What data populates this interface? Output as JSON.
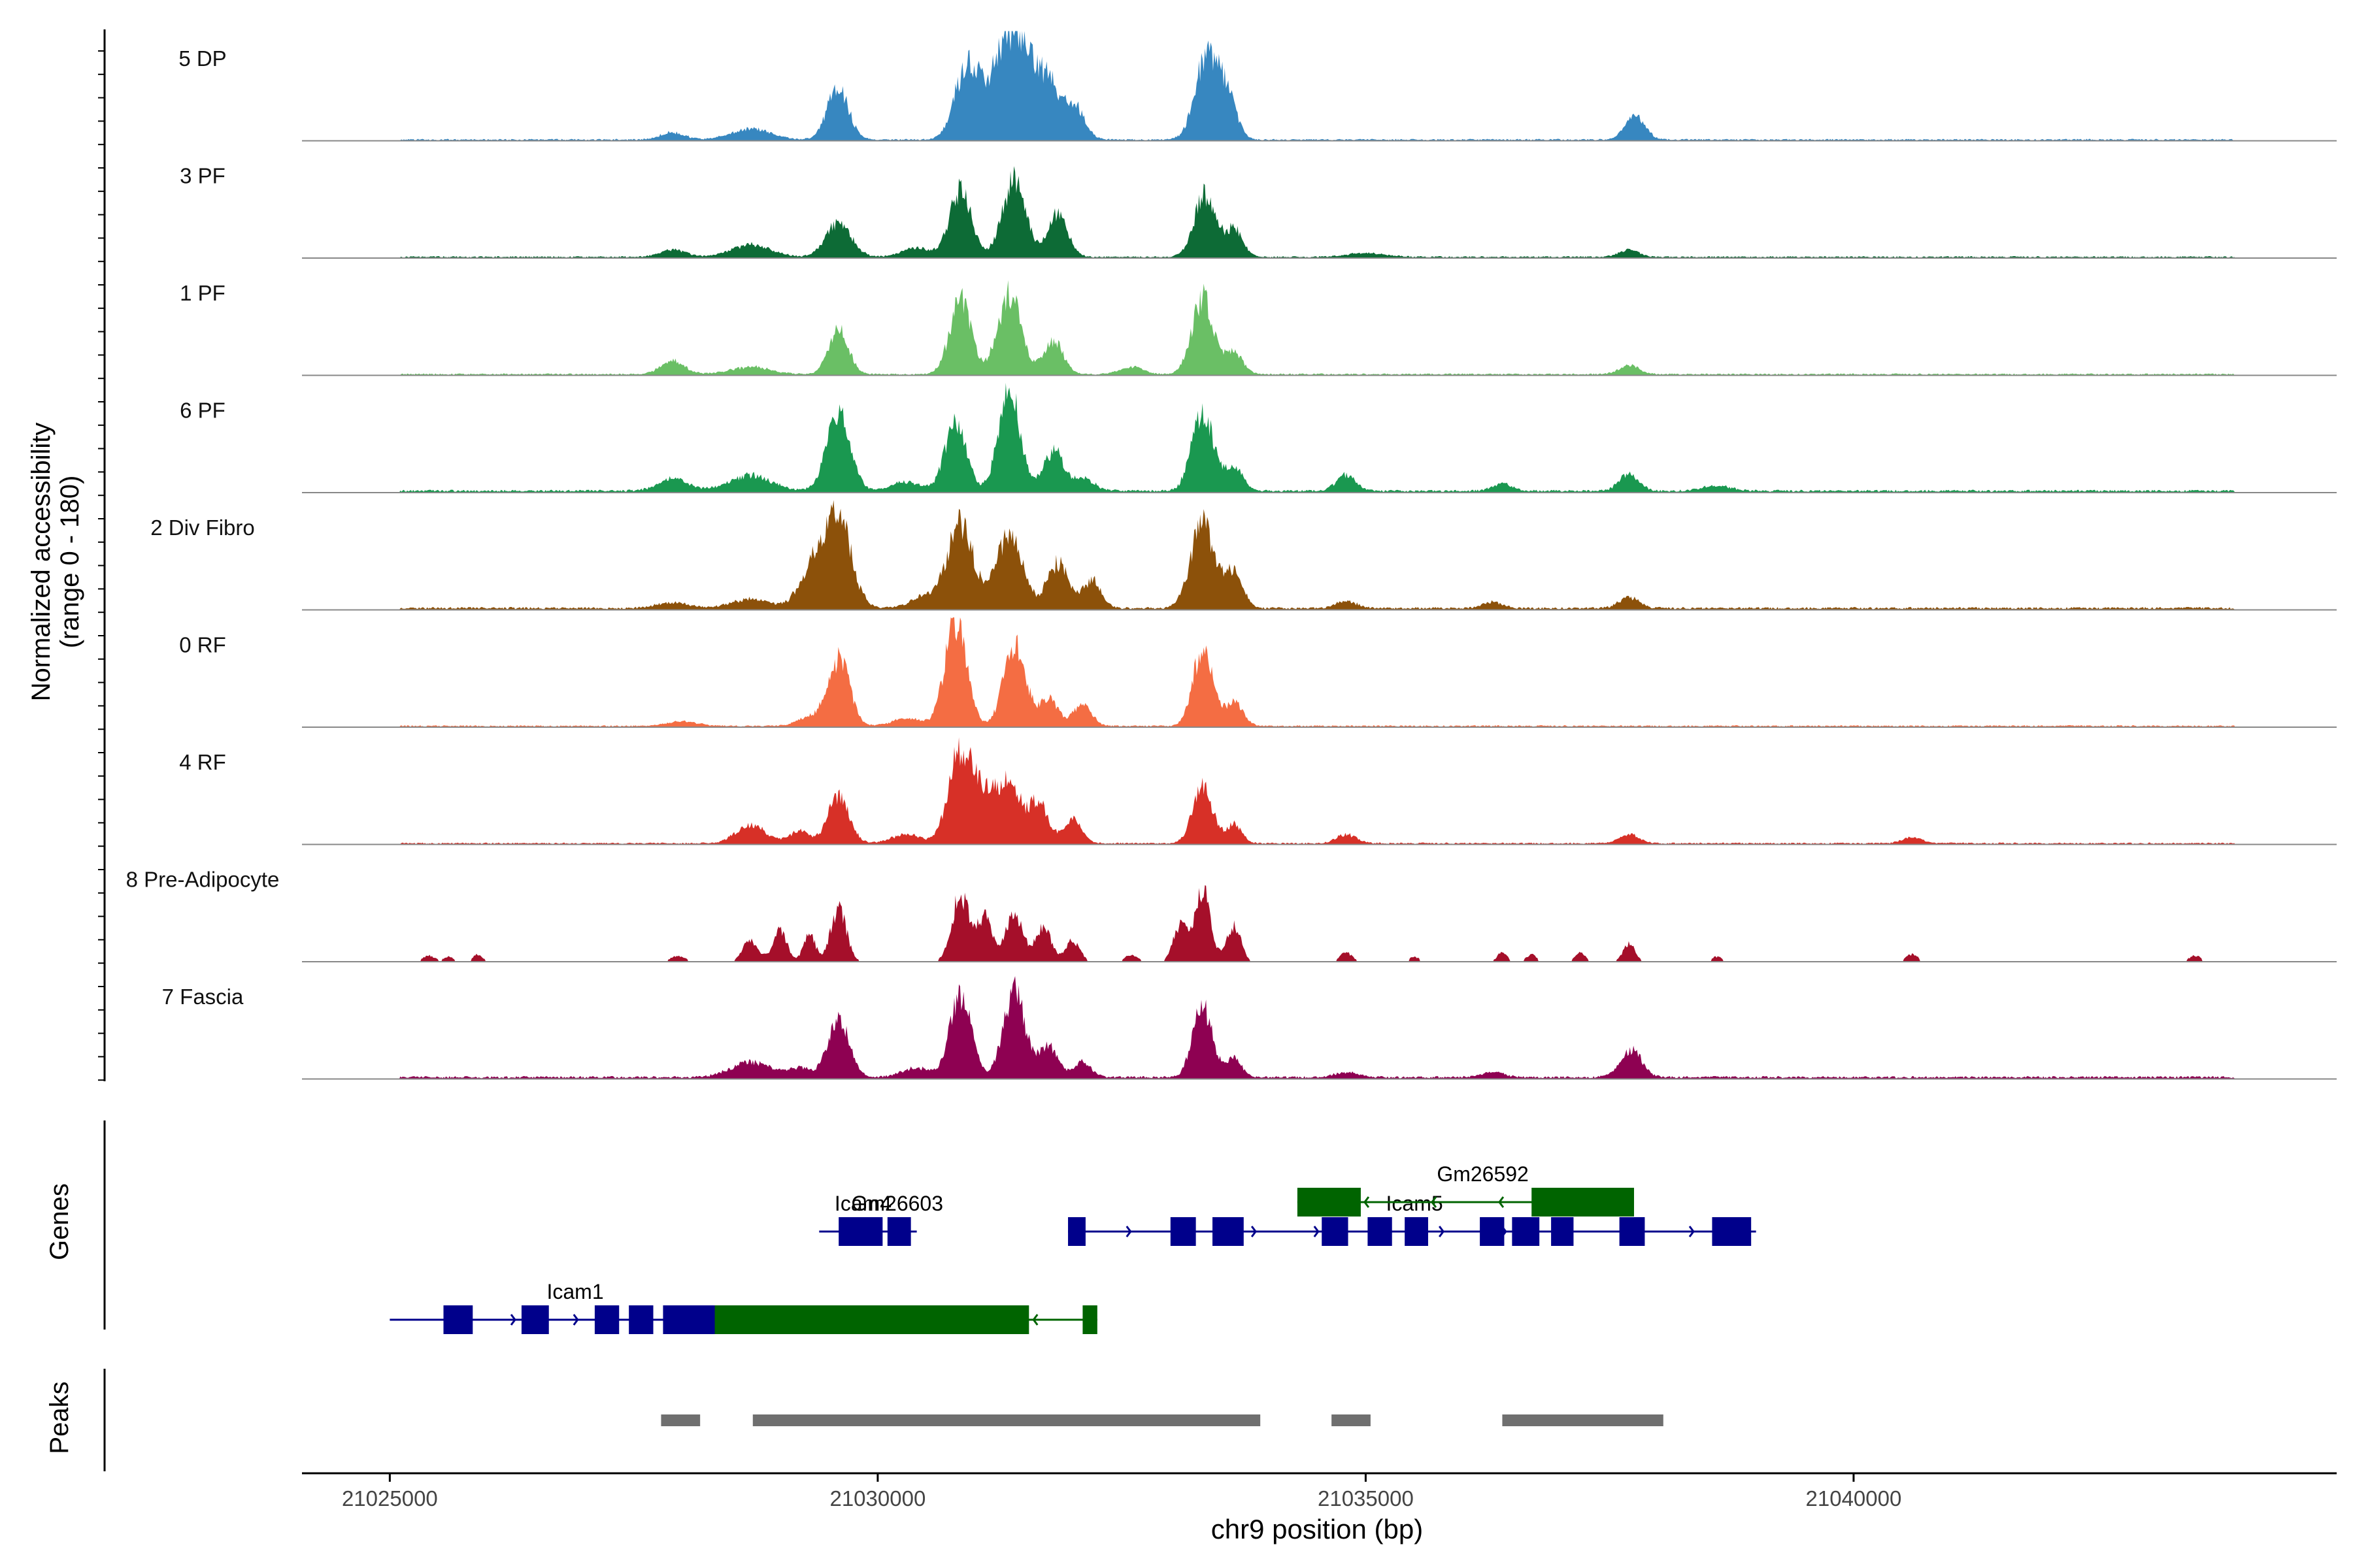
{
  "chart_data": {
    "type": "area",
    "xlabel": "chr9 position (bp)",
    "ylabel_line1": "Normalized accessibility",
    "ylabel_line2": "(range 0 - 180)",
    "y_range": [
      0,
      180
    ],
    "x_range": [
      21024100,
      21044950
    ],
    "x_ticks": [
      21025000,
      21030000,
      21035000,
      21040000
    ],
    "x_tick_labels": [
      "21025000",
      "21030000",
      "21035000",
      "21040000"
    ],
    "genes_label": "Genes",
    "peaks_label": "Peaks",
    "tracks": [
      {
        "name": "5 DP",
        "color": "#3787C0",
        "peaks": [
          [
            21029590,
            85,
            110
          ],
          [
            21030900,
            100,
            120
          ],
          [
            21031300,
            110,
            100
          ],
          [
            21031500,
            150,
            120
          ],
          [
            21031750,
            85,
            100
          ],
          [
            21032000,
            60,
            110
          ],
          [
            21033380,
            145,
            120
          ],
          [
            21037760,
            40,
            100
          ],
          [
            21027900,
            12,
            120
          ],
          [
            21028700,
            18,
            200
          ],
          [
            21031100,
            60,
            150
          ],
          [
            21033600,
            55,
            90
          ]
        ],
        "span": [
          21025100,
          21043900
        ],
        "baseline": 2
      },
      {
        "name": "3 PF",
        "color": "#0D6B36",
        "peaks": [
          [
            21029600,
            55,
            130
          ],
          [
            21030850,
            110,
            110
          ],
          [
            21031400,
            125,
            120
          ],
          [
            21031850,
            70,
            100
          ],
          [
            21033350,
            100,
            110
          ],
          [
            21027900,
            12,
            130
          ],
          [
            21028700,
            20,
            200
          ],
          [
            21030400,
            15,
            150
          ],
          [
            21033650,
            45,
            90
          ],
          [
            21037700,
            12,
            100
          ],
          [
            21035000,
            6,
            200
          ]
        ],
        "span": [
          21025100,
          21043900
        ],
        "baseline": 2
      },
      {
        "name": "1 PF",
        "color": "#6ABF65",
        "peaks": [
          [
            21029600,
            75,
            100
          ],
          [
            21030850,
            120,
            110
          ],
          [
            21031350,
            130,
            120
          ],
          [
            21031800,
            55,
            100
          ],
          [
            21033330,
            125,
            110
          ],
          [
            21027900,
            22,
            120
          ],
          [
            21028700,
            12,
            200
          ],
          [
            21033650,
            35,
            90
          ],
          [
            21037700,
            15,
            100
          ],
          [
            21032600,
            12,
            120
          ]
        ],
        "span": [
          21025100,
          21043900
        ],
        "baseline": 2
      },
      {
        "name": "6 PF",
        "color": "#1A9850",
        "peaks": [
          [
            21029600,
            125,
            120
          ],
          [
            21030800,
            110,
            110
          ],
          [
            21031350,
            165,
            110
          ],
          [
            21031800,
            65,
            100
          ],
          [
            21033330,
            130,
            110
          ],
          [
            21027900,
            20,
            150
          ],
          [
            21028700,
            25,
            220
          ],
          [
            21030300,
            15,
            150
          ],
          [
            21032100,
            20,
            120
          ],
          [
            21033650,
            40,
            90
          ],
          [
            21034800,
            25,
            100
          ],
          [
            21036400,
            12,
            100
          ],
          [
            21037700,
            28,
            100
          ],
          [
            21038600,
            8,
            150
          ]
        ],
        "span": [
          21025100,
          21043900
        ],
        "baseline": 3
      },
      {
        "name": "2 Div Fibro",
        "color": "#8C510A",
        "peaks": [
          [
            21029580,
            155,
            140
          ],
          [
            21030850,
            140,
            130
          ],
          [
            21031350,
            125,
            130
          ],
          [
            21031850,
            75,
            110
          ],
          [
            21032200,
            45,
            90
          ],
          [
            21033330,
            140,
            120
          ],
          [
            21033650,
            60,
            90
          ],
          [
            21029300,
            55,
            120
          ],
          [
            21030500,
            20,
            150
          ],
          [
            21027900,
            10,
            150
          ],
          [
            21028700,
            15,
            200
          ],
          [
            21034800,
            12,
            100
          ],
          [
            21036300,
            10,
            100
          ],
          [
            21037700,
            18,
            100
          ]
        ],
        "span": [
          21025100,
          21043900
        ],
        "baseline": 3
      },
      {
        "name": "0 RF",
        "color": "#F46D43",
        "peaks": [
          [
            21029600,
            110,
            110
          ],
          [
            21030800,
            175,
            110
          ],
          [
            21031400,
            135,
            110
          ],
          [
            21031750,
            45,
            100
          ],
          [
            21032100,
            35,
            90
          ],
          [
            21033330,
            125,
            100
          ],
          [
            21033650,
            40,
            90
          ],
          [
            21028000,
            8,
            150
          ],
          [
            21029300,
            15,
            120
          ],
          [
            21030300,
            12,
            150
          ]
        ],
        "span": [
          21025100,
          21043900
        ],
        "baseline": 2
      },
      {
        "name": "4 RF",
        "color": "#D73027",
        "peaks": [
          [
            21029600,
            75,
            110
          ],
          [
            21030850,
            150,
            120
          ],
          [
            21031100,
            70,
            120
          ],
          [
            21031350,
            90,
            120
          ],
          [
            21031650,
            65,
            100
          ],
          [
            21032000,
            40,
            90
          ],
          [
            21033330,
            95,
            100
          ],
          [
            21028700,
            30,
            150
          ],
          [
            21029200,
            20,
            100
          ],
          [
            21030300,
            15,
            150
          ],
          [
            21033650,
            30,
            80
          ],
          [
            21034800,
            15,
            100
          ],
          [
            21037700,
            15,
            100
          ],
          [
            21040600,
            10,
            100
          ]
        ],
        "span": [
          21025100,
          21043900
        ],
        "baseline": 2
      },
      {
        "name": "8 Pre-Adipocyte",
        "color": "#A50F2A",
        "peaks": [
          [
            21029600,
            85,
            80
          ],
          [
            21030850,
            110,
            90
          ],
          [
            21031100,
            70,
            80
          ],
          [
            21031400,
            75,
            90
          ],
          [
            21031700,
            55,
            80
          ],
          [
            21032000,
            35,
            70
          ],
          [
            21033330,
            115,
            80
          ],
          [
            21033100,
            60,
            70
          ],
          [
            21033650,
            60,
            70
          ],
          [
            21028700,
            35,
            80
          ],
          [
            21029000,
            50,
            70
          ],
          [
            21029300,
            45,
            60
          ],
          [
            21025400,
            10,
            60
          ],
          [
            21025600,
            8,
            50
          ],
          [
            21025900,
            12,
            50
          ],
          [
            21027950,
            10,
            70
          ],
          [
            21032600,
            12,
            60
          ],
          [
            21034800,
            15,
            60
          ],
          [
            21035500,
            8,
            50
          ],
          [
            21036400,
            15,
            50
          ],
          [
            21036700,
            12,
            50
          ],
          [
            21037200,
            15,
            50
          ],
          [
            21037700,
            30,
            60
          ],
          [
            21038600,
            8,
            60
          ],
          [
            21040600,
            12,
            60
          ],
          [
            21043500,
            10,
            60
          ]
        ],
        "span": [
          21025300,
          21043600
        ],
        "baseline": 0
      },
      {
        "name": "7 Fascia",
        "color": "#8E0152",
        "peaks": [
          [
            21029600,
            95,
            110
          ],
          [
            21030850,
            130,
            110
          ],
          [
            21031400,
            140,
            110
          ],
          [
            21031750,
            50,
            100
          ],
          [
            21032100,
            25,
            90
          ],
          [
            21033330,
            115,
            100
          ],
          [
            21033650,
            30,
            80
          ],
          [
            21028700,
            25,
            200
          ],
          [
            21029200,
            15,
            120
          ],
          [
            21030400,
            15,
            150
          ],
          [
            21037720,
            45,
            110
          ],
          [
            21034800,
            8,
            120
          ],
          [
            21036300,
            8,
            120
          ]
        ],
        "span": [
          21025100,
          21043900
        ],
        "baseline": 3
      }
    ],
    "genes": [
      {
        "name": "Icam1",
        "strand": "+",
        "color": "#00008B",
        "start": 21025000,
        "end": 21028850,
        "row": 2,
        "exons": [
          [
            21025550,
            21025850
          ],
          [
            21026350,
            21026630
          ],
          [
            21027100,
            21027350
          ],
          [
            21027450,
            21027700
          ],
          [
            21027800,
            21028850
          ]
        ],
        "label_pos": 21026900,
        "label_row": 2
      },
      {
        "name": "Icam4",
        "strand": "+",
        "color": "#00008B",
        "start": 21029400,
        "end": 21030400,
        "row": 1,
        "exons": [
          [
            21029600,
            21030050
          ],
          [
            21030100,
            21030340
          ]
        ],
        "label_pos": 21029850,
        "label_row": 1
      },
      {
        "name": "Gm26603",
        "strand": "-",
        "color": "#006400",
        "start": 21028330,
        "end": 21032250,
        "row": 2,
        "exons": [
          [
            21028330,
            21031550
          ],
          [
            21032100,
            21032250
          ]
        ],
        "label_pos": 21030200,
        "label_row": 1
      },
      {
        "name": "Icam5",
        "strand": "+",
        "color": "#00008B",
        "start": 21031950,
        "end": 21039000,
        "row": 1,
        "exons": [
          [
            21031950,
            21032130
          ],
          [
            21033000,
            21033260
          ],
          [
            21033430,
            21033750
          ],
          [
            21034550,
            21034820
          ],
          [
            21035020,
            21035270
          ],
          [
            21035400,
            21035640
          ],
          [
            21036170,
            21036420
          ],
          [
            21036500,
            21036780
          ],
          [
            21036900,
            21037130
          ],
          [
            21037600,
            21037860
          ],
          [
            21038550,
            21038950
          ]
        ],
        "label_pos": 21035500,
        "label_row": 1
      },
      {
        "name": "Gm26592",
        "strand": "-",
        "color": "#006400",
        "start": 21034300,
        "end": 21037750,
        "row": 0,
        "exons": [
          [
            21034300,
            21034950
          ],
          [
            21036700,
            21037750
          ]
        ],
        "label_pos": 21036200,
        "label_row": 0
      }
    ],
    "peaks_regions": [
      [
        21027780,
        21028180
      ],
      [
        21028720,
        21033920
      ],
      [
        21034650,
        21035050
      ],
      [
        21036400,
        21038050
      ]
    ]
  }
}
